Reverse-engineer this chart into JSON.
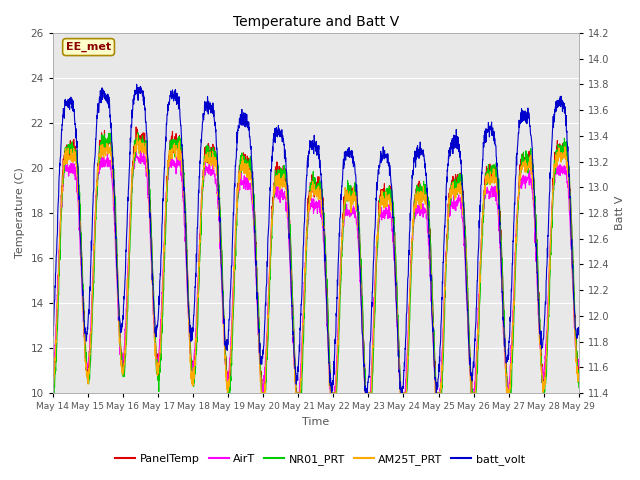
{
  "title": "Temperature and Batt V",
  "ylabel_left": "Temperature (C)",
  "ylabel_right": "Batt V",
  "xlabel": "Time",
  "annotation": "EE_met",
  "xlim": [
    14,
    29
  ],
  "ylim_left": [
    10,
    26
  ],
  "ylim_right": [
    11.4,
    14.2
  ],
  "x_tick_labels": [
    "May 14",
    "May 15",
    "May 16",
    "May 17",
    "May 18",
    "May 19",
    "May 20",
    "May 21",
    "May 22",
    "May 23",
    "May 24",
    "May 25",
    "May 26",
    "May 27",
    "May 28",
    "May 29"
  ],
  "yticks_left": [
    10,
    12,
    14,
    16,
    18,
    20,
    22,
    24,
    26
  ],
  "yticks_right": [
    11.4,
    11.6,
    11.8,
    12.0,
    12.2,
    12.4,
    12.6,
    12.8,
    13.0,
    13.2,
    13.4,
    13.6,
    13.8,
    14.0,
    14.2
  ],
  "series_colors": {
    "PanelTemp": "#dd0000",
    "AirT": "#ff00ff",
    "NR01_PRT": "#00cc00",
    "AM25T_PRT": "#ffaa00",
    "batt_volt": "#0000cc"
  },
  "series_labels": [
    "PanelTemp",
    "AirT",
    "NR01_PRT",
    "AM25T_PRT",
    "batt_volt"
  ],
  "background_color": "#e8e8e8",
  "grid_color": "#ffffff",
  "font_color": "#555555",
  "figsize": [
    6.4,
    4.8
  ],
  "dpi": 100
}
